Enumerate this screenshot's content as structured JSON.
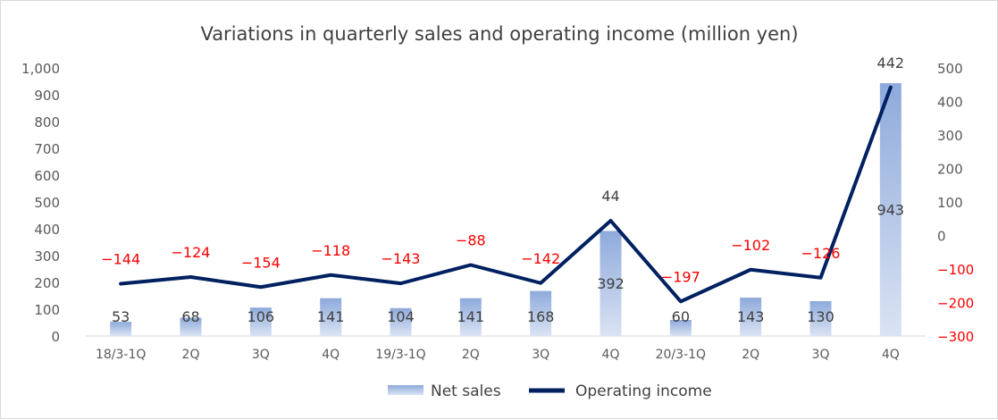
{
  "chart_data": {
    "type": "bar+line",
    "title": "Variations in quarterly sales and operating income (million yen)",
    "categories": [
      "18/3-1Q",
      "2Q",
      "3Q",
      "4Q",
      "19/3-1Q",
      "2Q",
      "3Q",
      "4Q",
      "20/3-1Q",
      "2Q",
      "3Q",
      "4Q"
    ],
    "series": [
      {
        "name": "Net sales",
        "type": "bar",
        "axis": "left",
        "values": [
          53,
          68,
          106,
          141,
          104,
          141,
          168,
          392,
          60,
          143,
          130,
          943
        ]
      },
      {
        "name": "Operating income",
        "type": "line",
        "axis": "right",
        "values": [
          -144,
          -124,
          -154,
          -118,
          -143,
          -88,
          -142,
          44,
          -197,
          -102,
          -126,
          442
        ]
      }
    ],
    "left_axis": {
      "min": 0,
      "max": 1000,
      "step": 100,
      "tick_labels": [
        "0",
        "100",
        "200",
        "300",
        "400",
        "500",
        "600",
        "700",
        "800",
        "900",
        "1,000"
      ]
    },
    "right_axis": {
      "min": -300,
      "max": 500,
      "step": 100,
      "tick_labels": [
        "−300",
        "−200",
        "−100",
        "0",
        "100",
        "200",
        "300",
        "400",
        "500"
      ]
    },
    "line_labels": [
      "−144",
      "−124",
      "−154",
      "−118",
      "−143",
      "−88",
      "−142",
      "44",
      "−197",
      "−102",
      "−126",
      "442"
    ],
    "legend": {
      "placement": "bottom",
      "items": [
        "Net sales",
        "Operating income"
      ]
    },
    "grid": false,
    "colors": {
      "bar_top": "#8eaadb",
      "bar_bottom": "#dae3f3",
      "line": "#002060",
      "negative_label": "#ff0000",
      "positive_label": "#404040"
    }
  }
}
